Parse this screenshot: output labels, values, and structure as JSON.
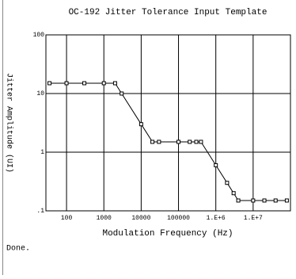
{
  "chart_data": {
    "type": "line",
    "title": "OC-192 Jitter Tolerance Input Template",
    "x_label": "Modulation Frequency (Hz)",
    "y_label": "Jitter Amplitude (UI)",
    "x_log": true,
    "y_log": true,
    "grid": true,
    "xlim": [
      28,
      100000000
    ],
    "ylim": [
      0.1,
      100
    ],
    "xticks": [
      100,
      1000,
      10000,
      100000,
      {
        "value": 1000000,
        "label": "1.E+6"
      },
      {
        "value": 10000000,
        "label": "1.E+7"
      }
    ],
    "yticks": [
      100,
      10,
      1,
      {
        "value": 0.1,
        "label": ".1"
      }
    ],
    "series": [
      {
        "color": "#000000",
        "x": [
          35,
          100,
          300,
          1000,
          2000,
          3000,
          10000,
          20000,
          30000,
          100000,
          200000,
          300000,
          400000,
          1000000,
          2000000,
          3000000,
          4000000,
          10000000,
          20000000,
          40000000,
          80000000
        ],
        "values": [
          15,
          15,
          15,
          15,
          15,
          10,
          3,
          1.5,
          1.5,
          1.5,
          1.5,
          1.5,
          1.5,
          0.6,
          0.3,
          0.2,
          0.15,
          0.15,
          0.15,
          0.15,
          0.15
        ]
      }
    ],
    "status": "Done."
  }
}
